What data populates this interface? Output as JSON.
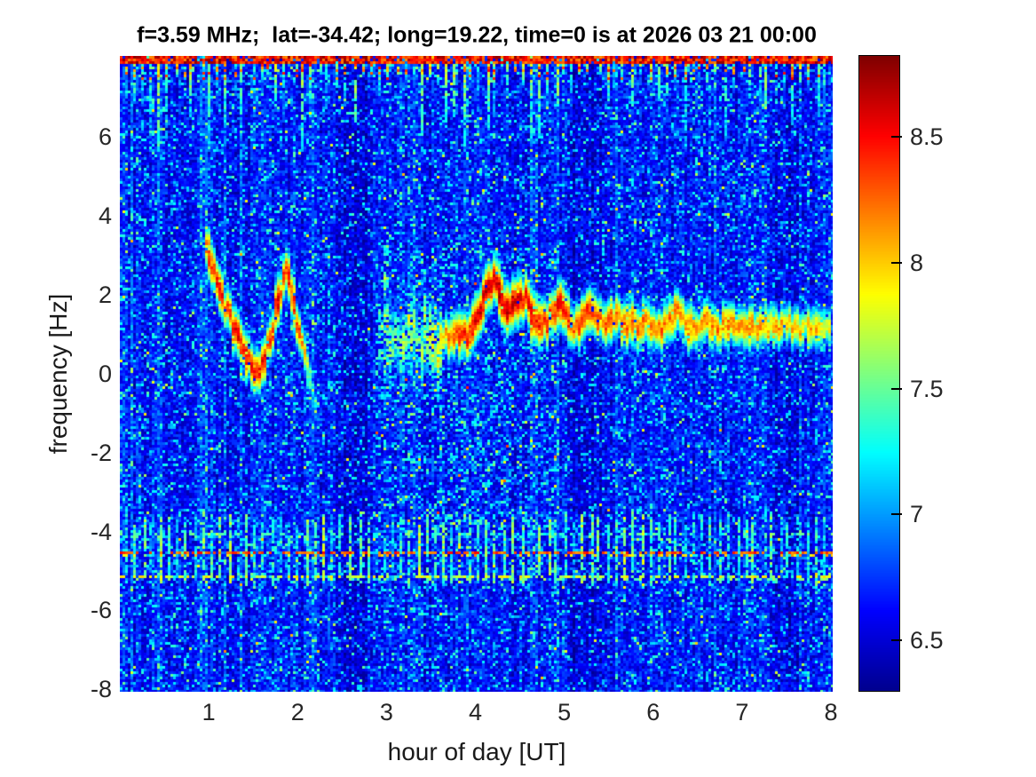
{
  "chart_data": {
    "type": "heatmap",
    "subtype": "doppler_spectrogram",
    "title": "f=3.59 MHz;  lat=-34.42; long=19.22, time=0 is at 2026 03 21 00:00",
    "xlabel": "hour of day [UT]",
    "ylabel": "frequency [Hz]",
    "xlim": [
      0,
      8.02
    ],
    "ylim": [
      -8.06,
      8.05
    ],
    "x_ticks": [
      1,
      2,
      3,
      4,
      5,
      6,
      7,
      8
    ],
    "y_ticks": [
      6,
      4,
      2,
      0,
      -2,
      -4,
      -6,
      -8
    ],
    "grid": false,
    "legend": "none",
    "colorbar": {
      "position": "right",
      "range": [
        6.3,
        8.82
      ],
      "ticks": [
        6.5,
        7,
        7.5,
        8,
        8.5
      ],
      "colormap": "jet"
    },
    "series": [
      {
        "name": "doppler-trace-event-1",
        "description": "sharp zigzag Doppler trace: descends from +3.2 Hz at 1.0 UT to 0 Hz near 1.5 UT, rises to +2.6 Hz near 1.9 UT, then fades while descending below 0 Hz",
        "render": {
          "core": 0.07,
          "slope": 3.0,
          "density": 0.88,
          "jitter": 0.2
        },
        "points_hour_freq_power": [
          [
            0.96,
            3.2,
            8.0
          ],
          [
            1.0,
            3.0,
            8.3
          ],
          [
            1.06,
            2.55,
            8.3
          ],
          [
            1.14,
            2.0,
            8.4
          ],
          [
            1.22,
            1.55,
            8.3
          ],
          [
            1.32,
            0.95,
            8.4
          ],
          [
            1.42,
            0.35,
            8.4
          ],
          [
            1.49,
            0.15,
            8.4
          ],
          [
            1.57,
            0.1,
            8.3
          ],
          [
            1.63,
            0.3,
            8.4
          ],
          [
            1.7,
            0.9,
            8.3
          ],
          [
            1.77,
            1.7,
            8.4
          ],
          [
            1.83,
            2.3,
            8.4
          ],
          [
            1.87,
            2.6,
            8.4
          ],
          [
            1.91,
            2.35,
            8.3
          ],
          [
            1.96,
            1.8,
            8.3
          ],
          [
            2.02,
            1.1,
            8.2
          ],
          [
            2.07,
            0.5,
            7.9
          ],
          [
            2.13,
            -0.15,
            7.4
          ],
          [
            2.2,
            -0.8,
            7.1
          ],
          [
            2.28,
            -1.4,
            6.95
          ]
        ]
      },
      {
        "name": "doppler-trace-event-2-diffuse-onset",
        "description": "diffuse yellow-green scatter cloud around +1 Hz from 2.9 to 3.6 UT",
        "render": {
          "core": 0.05,
          "slope": 1.0,
          "density": 0.5,
          "jitter": 0.55
        },
        "points_hour_freq_power": [
          [
            2.92,
            1.15,
            7.5
          ],
          [
            3.05,
            0.9,
            7.6
          ],
          [
            3.18,
            1.05,
            7.65
          ],
          [
            3.3,
            0.85,
            7.7
          ],
          [
            3.42,
            1.0,
            7.7
          ],
          [
            3.52,
            0.7,
            7.75
          ],
          [
            3.62,
            0.8,
            7.8
          ]
        ]
      },
      {
        "name": "doppler-trace-event-2",
        "description": "strong oscillating trace peaking near +2.4 Hz at 4.2 UT, decaying to a steady line near +1.2 Hz through 8 UT",
        "render": {
          "core": 0.08,
          "slope": 2.8,
          "density": 0.88,
          "jitter": 0.18
        },
        "points_hour_freq_power": [
          [
            3.6,
            0.7,
            7.9
          ],
          [
            3.68,
            0.9,
            8.1
          ],
          [
            3.76,
            1.0,
            8.25
          ],
          [
            3.84,
            1.05,
            8.3
          ],
          [
            3.92,
            0.95,
            8.3
          ],
          [
            4.0,
            1.3,
            8.4
          ],
          [
            4.08,
            1.8,
            8.5
          ],
          [
            4.16,
            2.25,
            8.55
          ],
          [
            4.22,
            2.35,
            8.5
          ],
          [
            4.28,
            1.95,
            8.5
          ],
          [
            4.34,
            1.55,
            8.5
          ],
          [
            4.42,
            1.75,
            8.45
          ],
          [
            4.5,
            2.0,
            8.5
          ],
          [
            4.57,
            1.9,
            8.45
          ],
          [
            4.64,
            1.45,
            8.35
          ],
          [
            4.72,
            1.2,
            8.3
          ],
          [
            4.8,
            1.3,
            8.3
          ],
          [
            4.88,
            1.6,
            8.35
          ],
          [
            4.96,
            1.75,
            8.4
          ],
          [
            5.04,
            1.45,
            8.25
          ],
          [
            5.12,
            1.2,
            8.15
          ],
          [
            5.2,
            1.4,
            8.2
          ],
          [
            5.28,
            1.6,
            8.25
          ],
          [
            5.36,
            1.45,
            8.2
          ],
          [
            5.44,
            1.2,
            8.15
          ],
          [
            5.52,
            1.4,
            8.2
          ],
          [
            5.6,
            1.45,
            8.2
          ],
          [
            5.68,
            1.2,
            8.15
          ],
          [
            5.76,
            1.35,
            8.15
          ],
          [
            5.84,
            1.2,
            8.2
          ],
          [
            5.92,
            1.3,
            8.1
          ],
          [
            6.0,
            1.2,
            8.15
          ],
          [
            6.08,
            1.1,
            8.1
          ],
          [
            6.16,
            1.25,
            8.1
          ],
          [
            6.24,
            1.5,
            8.2
          ],
          [
            6.32,
            1.45,
            8.15
          ],
          [
            6.4,
            1.15,
            8.1
          ],
          [
            6.48,
            1.2,
            8.05
          ],
          [
            6.56,
            1.35,
            8.1
          ],
          [
            6.64,
            1.2,
            8.05
          ],
          [
            6.72,
            1.15,
            8.05
          ],
          [
            6.8,
            1.25,
            8.1
          ],
          [
            6.88,
            1.3,
            8.05
          ],
          [
            6.96,
            1.15,
            8.0
          ],
          [
            7.04,
            1.1,
            8.0
          ],
          [
            7.12,
            1.2,
            8.05
          ],
          [
            7.2,
            1.15,
            8.0
          ],
          [
            7.28,
            1.2,
            7.95
          ],
          [
            7.36,
            1.15,
            8.0
          ],
          [
            7.44,
            1.1,
            7.95
          ],
          [
            7.52,
            1.2,
            7.95
          ],
          [
            7.6,
            1.15,
            7.95
          ],
          [
            7.68,
            1.2,
            7.9
          ],
          [
            7.76,
            1.1,
            7.95
          ],
          [
            7.84,
            1.15,
            7.9
          ],
          [
            7.92,
            1.2,
            7.9
          ],
          [
            8.0,
            1.15,
            7.9
          ]
        ]
      }
    ],
    "interference": {
      "top_band": {
        "freq_range": [
          7.85,
          8.06
        ],
        "power_range": [
          8.15,
          8.8
        ],
        "streak_period_hours": 0.095,
        "streak_reach_freq": [
          7.6,
          5.5
        ],
        "streak_power_range": [
          7.15,
          7.9
        ]
      },
      "lower_band": {
        "freq_range": [
          -5.45,
          -3.55
        ],
        "streak_period_hours": 0.097,
        "streak_power_range": [
          7.05,
          7.7
        ],
        "dashed_lines": [
          {
            "freq": -4.52,
            "power": 8.25,
            "duty": 0.6
          },
          {
            "freq": -5.12,
            "power": 7.75,
            "duty": 0.42
          },
          {
            "freq": -4.05,
            "power": 7.35,
            "duty": 0.3
          }
        ]
      },
      "pre_event_column": {
        "hour": 2.98,
        "freq_range": [
          -0.6,
          3.2
        ],
        "power": 7.4
      }
    },
    "texture": {
      "background_power_range": [
        6.4,
        7.0
      ],
      "speckle_power_range": [
        7.0,
        7.8
      ],
      "speckle_fraction": 0.16,
      "dark_column_bands_hours": [
        [
          2.42,
          2.82
        ],
        [
          5.05,
          5.45
        ],
        [
          7.35,
          7.65
        ]
      ],
      "speckle_boost_region": {
        "hours": [
          2.85,
          4.95
        ],
        "freq": [
          -4,
          3.2
        ]
      }
    }
  }
}
